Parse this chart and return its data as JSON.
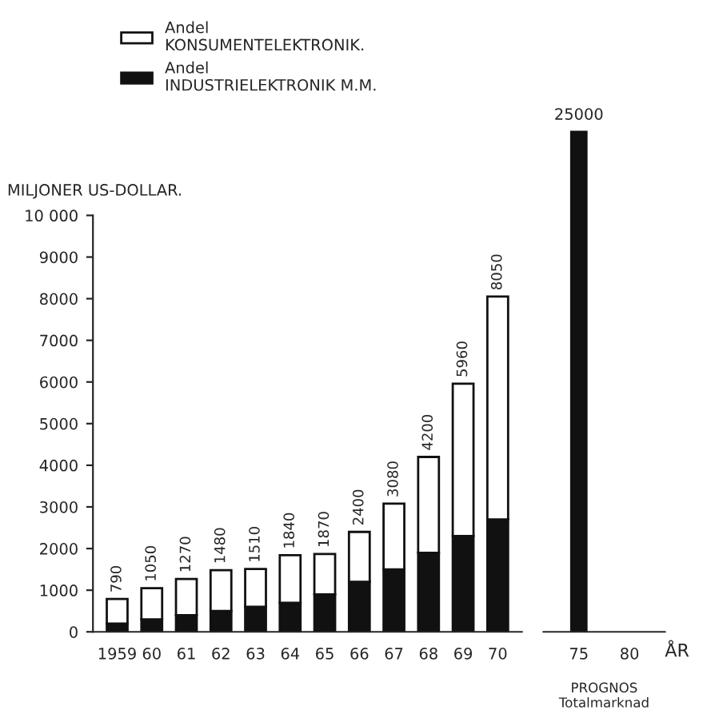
{
  "chart_data": [
    {
      "type": "bar",
      "stacked": true,
      "ylabel": "MILJONER US-DOLLAR.",
      "categories": [
        "1959",
        "60",
        "61",
        "62",
        "63",
        "64",
        "65",
        "66",
        "67",
        "68",
        "69",
        "70"
      ],
      "series": [
        {
          "name": "Andel\nINDUSTRIELEKTRONIK M.M.",
          "color": "#111111",
          "values": [
            200,
            300,
            400,
            500,
            600,
            700,
            900,
            1200,
            1500,
            1900,
            2300,
            2700
          ]
        },
        {
          "name": "Andel\nKONSUMENTELEKTRONIK.",
          "color": "#ffffff",
          "values": [
            590,
            750,
            870,
            980,
            910,
            1140,
            970,
            1200,
            1580,
            2300,
            3660,
            5350
          ]
        }
      ],
      "totals": [
        "790",
        "1050",
        "1270",
        "1480",
        "1510",
        "1840",
        "1870",
        "2400",
        "3080",
        "4200",
        "5960",
        "8050"
      ],
      "ylim": [
        0,
        10000
      ],
      "yticks": [
        {
          "value": 0,
          "label": "0"
        },
        {
          "value": 1000,
          "label": "1000"
        },
        {
          "value": 2000,
          "label": "2000"
        },
        {
          "value": 3000,
          "label": "3000"
        },
        {
          "value": 4000,
          "label": "4000"
        },
        {
          "value": 5000,
          "label": "5000"
        },
        {
          "value": 6000,
          "label": "6000"
        },
        {
          "value": 7000,
          "label": "7000"
        },
        {
          "value": 8000,
          "label": "8000"
        },
        {
          "value": 9000,
          "label": "9000"
        },
        {
          "value": 10000,
          "label": "10 000"
        }
      ],
      "legend": "top left",
      "grid": false
    },
    {
      "type": "bar",
      "xlabel": "ÅR",
      "categories": [
        "75",
        "80"
      ],
      "series": [
        {
          "color": "#111111",
          "values": [
            25000,
            null
          ],
          "value_labels": [
            "25000",
            null
          ]
        }
      ],
      "annotations": [
        "PROGNOS\nTotalmarknad"
      ],
      "grid": false
    }
  ]
}
